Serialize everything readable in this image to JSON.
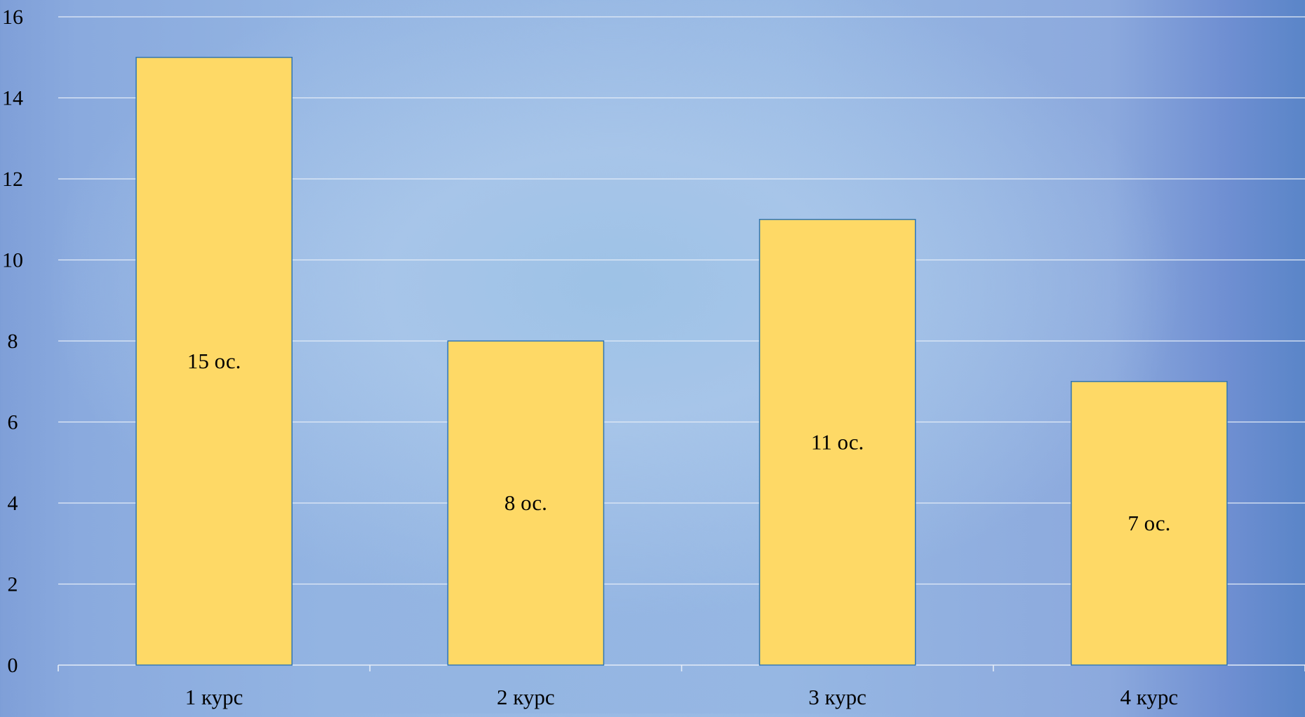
{
  "chart_data": {
    "type": "bar",
    "categories": [
      "1 курс",
      "2 курс",
      "3 курс",
      "4 курс"
    ],
    "values": [
      15,
      8,
      11,
      7
    ],
    "data_labels": [
      "15 ос.",
      "8 ос.",
      "11 ос.",
      "7 ос."
    ],
    "ylim": [
      0,
      16
    ],
    "yticks": [
      0,
      2,
      4,
      6,
      8,
      10,
      12,
      14,
      16
    ],
    "grid": true,
    "legend": "none",
    "colors": {
      "bar_fill": "#fed966",
      "bar_stroke": "#2e75b6",
      "gridline": "#e4ecf7",
      "text": "#000000"
    }
  }
}
